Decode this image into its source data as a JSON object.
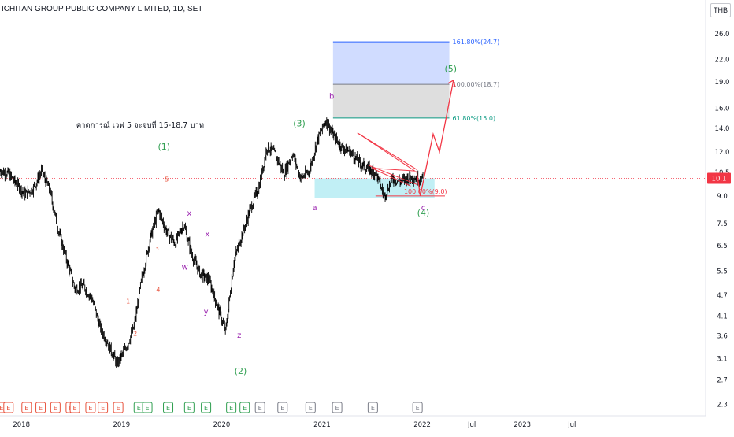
{
  "chart_data": {
    "type": "candlestick",
    "title": "ICHITAN GROUP PUBLIC COMPANY LIMITED, 1D, SET",
    "currency": "THB",
    "scale": "log",
    "ylim": [
      2.2,
      29
    ],
    "y_ticks": [
      "26.0",
      "22.0",
      "19.0",
      "16.0",
      "14.0",
      "12.0",
      "10.5",
      "9.0",
      "7.5",
      "6.5",
      "5.5",
      "4.7",
      "4.1",
      "3.6",
      "3.1",
      "2.7",
      "2.3"
    ],
    "x_ticks": [
      "2018",
      "2019",
      "2020",
      "2021",
      "2022",
      "Jul",
      "2023",
      "Jul"
    ],
    "last_price_label": "10.1",
    "last_price": 10.1,
    "price_series": {
      "x": [
        "2017-09",
        "2017-10",
        "2017-11",
        "2017-12",
        "2018-01",
        "2018-02",
        "2018-03",
        "2018-04",
        "2018-05",
        "2018-06",
        "2018-07",
        "2018-08",
        "2018-09",
        "2018-10",
        "2018-11",
        "2018-12",
        "2019-01",
        "2019-02",
        "2019-03",
        "2019-04",
        "2019-05",
        "2019-06",
        "2019-07",
        "2019-08",
        "2019-09",
        "2019-10",
        "2019-11",
        "2019-12",
        "2020-01",
        "2020-02",
        "2020-03",
        "2020-04",
        "2020-05",
        "2020-06",
        "2020-07",
        "2020-08",
        "2020-09",
        "2020-10",
        "2020-11",
        "2020-12",
        "2021-01",
        "2021-02",
        "2021-03",
        "2021-04",
        "2021-05",
        "2021-06",
        "2021-07",
        "2021-08",
        "2021-09",
        "2021-10",
        "2021-11",
        "2021-12"
      ],
      "y": [
        11.0,
        10.6,
        10.4,
        9.7,
        9.1,
        9.5,
        10.6,
        9.3,
        7.2,
        5.9,
        4.9,
        5.0,
        4.6,
        3.8,
        3.4,
        3.0,
        3.3,
        3.8,
        5.2,
        6.8,
        8.2,
        7.1,
        6.6,
        7.5,
        6.1,
        5.4,
        5.2,
        4.4,
        3.7,
        5.9,
        7.0,
        8.3,
        9.5,
        12.5,
        11.8,
        10.4,
        11.9,
        10.1,
        10.6,
        13.0,
        14.8,
        13.2,
        12.4,
        12.0,
        11.2,
        10.8,
        10.5,
        9.0,
        10.1,
        9.9,
        10.2,
        10.1
      ]
    },
    "wave_labels": [
      {
        "text": "(1)",
        "color": "#2e9e4f"
      },
      {
        "text": "(2)",
        "color": "#2e9e4f"
      },
      {
        "text": "(3)",
        "color": "#2e9e4f"
      },
      {
        "text": "(4)",
        "color": "#2e9e4f"
      },
      {
        "text": "(5)",
        "color": "#2e9e4f"
      },
      {
        "text": "1",
        "color": "#e8523c"
      },
      {
        "text": "2",
        "color": "#e8523c"
      },
      {
        "text": "3",
        "color": "#e8523c"
      },
      {
        "text": "4",
        "color": "#e8523c"
      },
      {
        "text": "5",
        "color": "#e8523c"
      },
      {
        "text": "w",
        "color": "#9c27b0"
      },
      {
        "text": "x",
        "color": "#9c27b0"
      },
      {
        "text": "y",
        "color": "#9c27b0"
      },
      {
        "text": "x",
        "color": "#9c27b0"
      },
      {
        "text": "z",
        "color": "#9c27b0"
      },
      {
        "text": "a",
        "color": "#9c27b0"
      },
      {
        "text": "b",
        "color": "#9c27b0"
      },
      {
        "text": "c",
        "color": "#9c27b0"
      }
    ],
    "fib_levels": [
      {
        "label": "161.80%(24.7)",
        "value": 24.7,
        "color": "#2962ff"
      },
      {
        "label": "100.00%(18.7)",
        "value": 18.7,
        "color": "#787b86"
      },
      {
        "label": "61.80%(15.0)",
        "value": 15.0,
        "color": "#089981"
      },
      {
        "label": "100.00%(9.0)",
        "value": 9.0,
        "color": "#f23645"
      }
    ],
    "annotation": "คาดการณ์ เวฟ 5 จะจบที่ 15-18.7 บาท",
    "event_markers": [
      "E",
      "E",
      "E",
      "E",
      "E",
      "E",
      "E",
      "E",
      "E",
      "E",
      "E",
      "E",
      "E",
      "E",
      "E",
      "E",
      "E",
      "E",
      "E",
      "E",
      "E",
      "E",
      "E"
    ],
    "colors": {
      "candle": "#000000",
      "forecast_arrow": "#f23645",
      "support_zone": "#b2ebf2",
      "upper_zone": "#c8d6ff",
      "mid_zone": "#dcdcdc",
      "price_line": "#f23645"
    }
  }
}
